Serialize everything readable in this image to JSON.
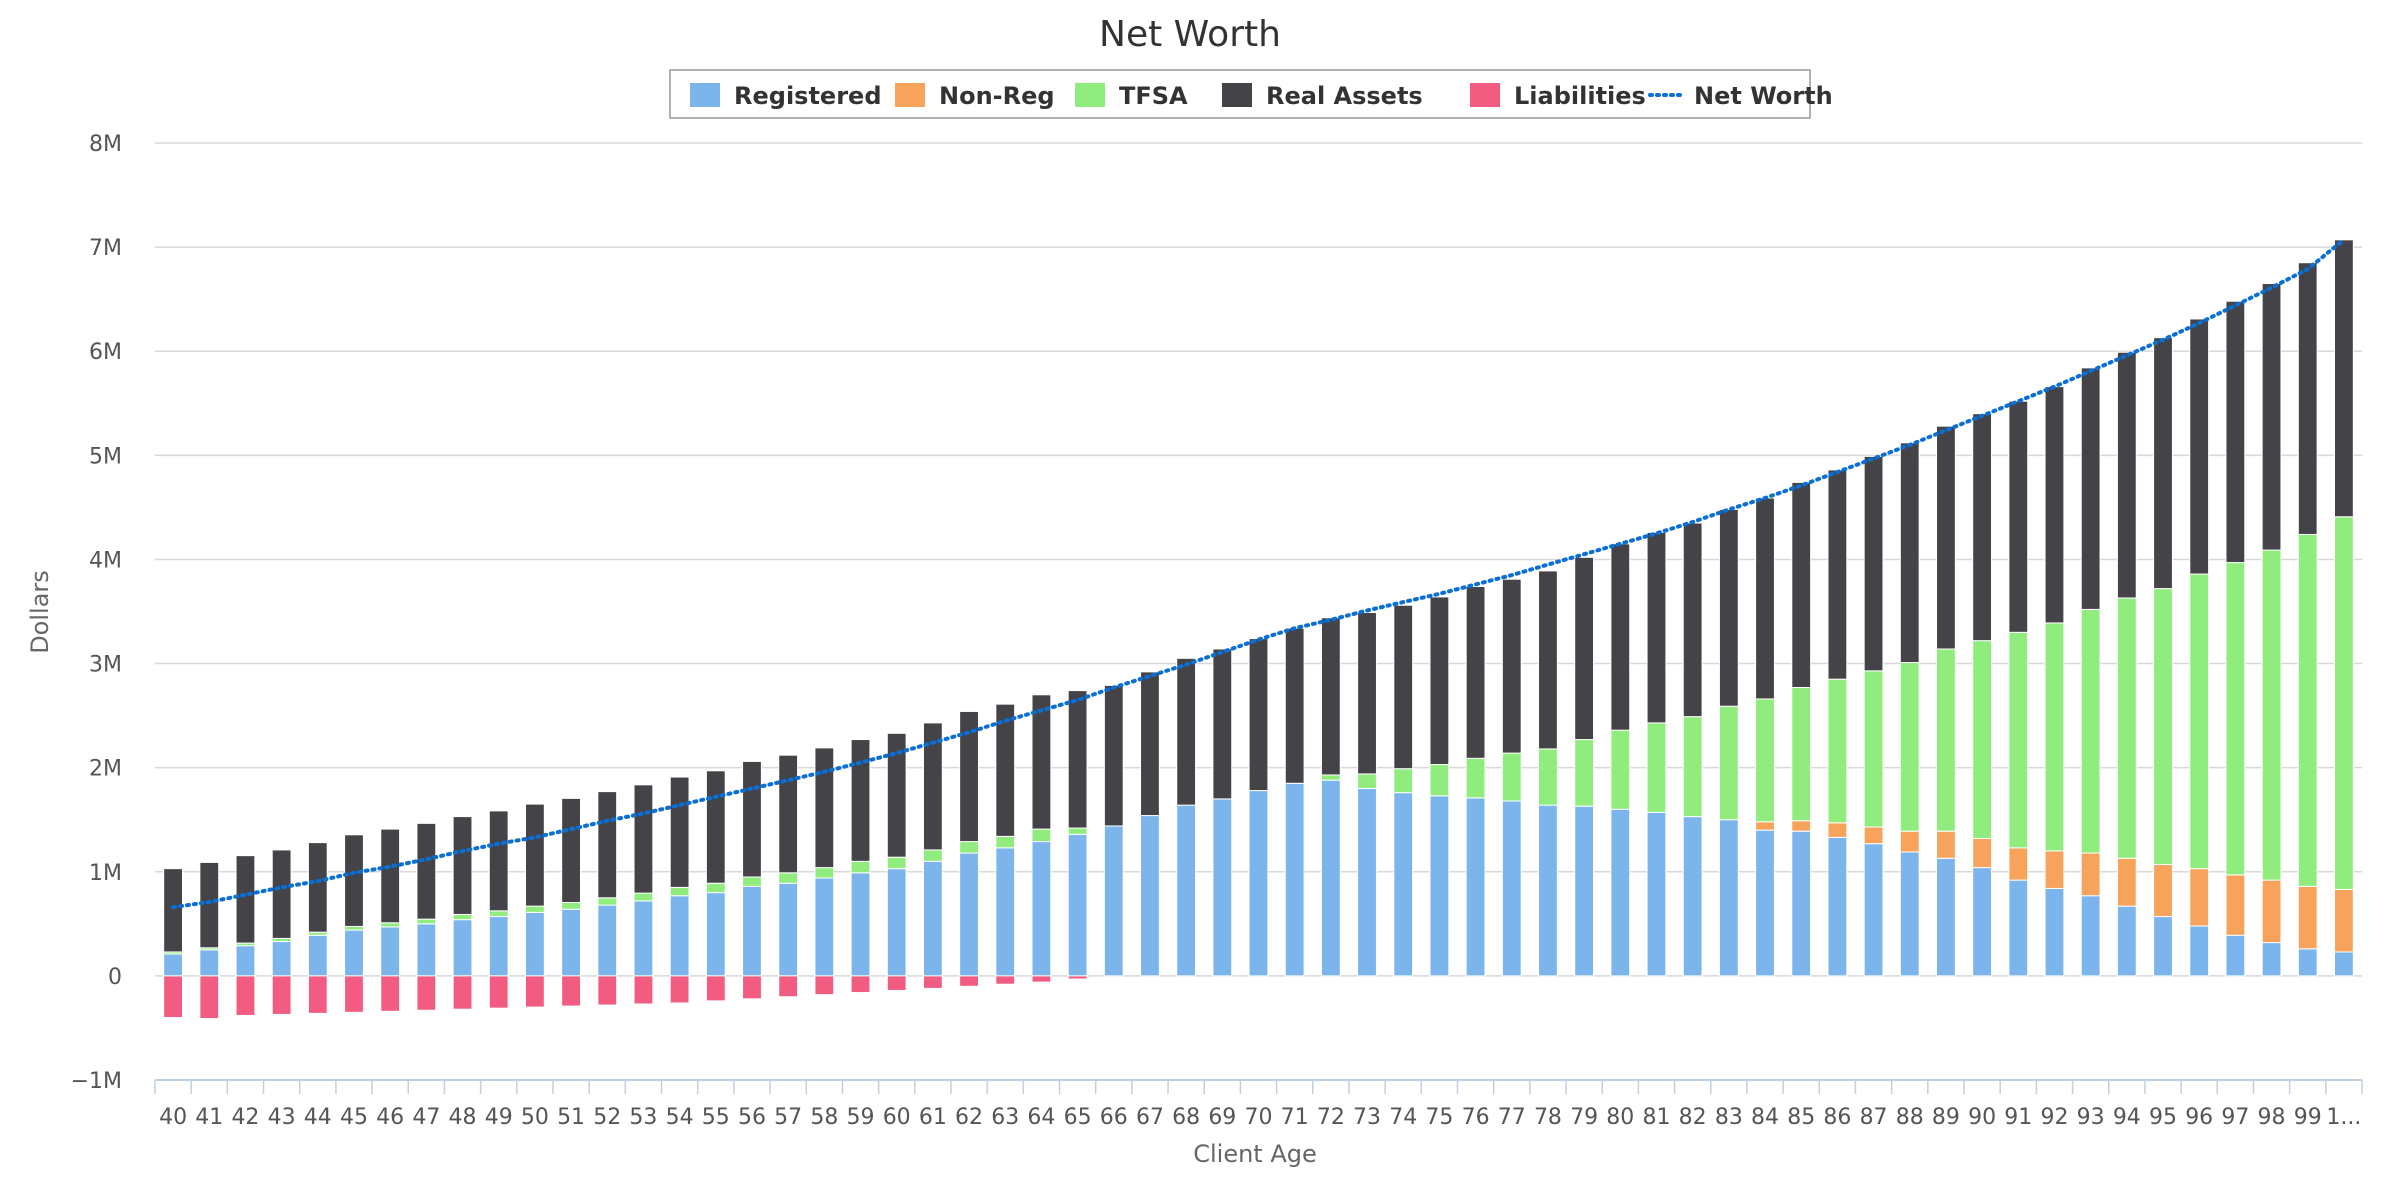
{
  "chart_data": {
    "type": "bar",
    "stacked": true,
    "title": "Net Worth",
    "xlabel": "Client Age",
    "ylabel": "Dollars",
    "ylim": [
      -1000000,
      8000000
    ],
    "yticks": [
      -1000000,
      0,
      1000000,
      2000000,
      3000000,
      4000000,
      5000000,
      6000000,
      7000000,
      8000000
    ],
    "ytick_labels": [
      "−1M",
      "0",
      "1M",
      "2M",
      "3M",
      "4M",
      "5M",
      "6M",
      "7M",
      "8M"
    ],
    "grid": true,
    "legend_position": "top-center",
    "categories": [
      "40",
      "41",
      "42",
      "43",
      "44",
      "45",
      "46",
      "47",
      "48",
      "49",
      "50",
      "51",
      "52",
      "53",
      "54",
      "55",
      "56",
      "57",
      "58",
      "59",
      "60",
      "61",
      "62",
      "63",
      "64",
      "65",
      "66",
      "67",
      "68",
      "69",
      "70",
      "71",
      "72",
      "73",
      "74",
      "75",
      "76",
      "77",
      "78",
      "79",
      "80",
      "81",
      "82",
      "83",
      "84",
      "85",
      "86",
      "87",
      "88",
      "89",
      "90",
      "91",
      "92",
      "93",
      "94",
      "95",
      "96",
      "97",
      "98",
      "99",
      "1..."
    ],
    "series": [
      {
        "name": "Registered",
        "type": "bar",
        "color": "#7cb5ec",
        "values": [
          210000,
          250000,
          290000,
          330000,
          390000,
          440000,
          470000,
          500000,
          540000,
          570000,
          610000,
          640000,
          680000,
          720000,
          770000,
          800000,
          860000,
          890000,
          940000,
          990000,
          1030000,
          1100000,
          1180000,
          1230000,
          1290000,
          1360000,
          1440000,
          1540000,
          1640000,
          1700000,
          1780000,
          1850000,
          1880000,
          1800000,
          1760000,
          1730000,
          1710000,
          1680000,
          1640000,
          1630000,
          1600000,
          1570000,
          1530000,
          1500000,
          1400000,
          1390000,
          1330000,
          1270000,
          1190000,
          1130000,
          1040000,
          920000,
          840000,
          770000,
          670000,
          570000,
          480000,
          390000,
          320000,
          260000,
          230000
        ]
      },
      {
        "name": "Non-Reg",
        "type": "bar",
        "color": "#f7a35c",
        "values": [
          0,
          0,
          0,
          0,
          0,
          0,
          0,
          0,
          0,
          0,
          0,
          0,
          0,
          0,
          0,
          0,
          0,
          0,
          0,
          0,
          0,
          0,
          0,
          0,
          0,
          0,
          0,
          0,
          0,
          0,
          0,
          0,
          0,
          0,
          0,
          0,
          0,
          0,
          0,
          0,
          0,
          0,
          0,
          0,
          80000,
          100000,
          140000,
          160000,
          200000,
          260000,
          280000,
          310000,
          360000,
          410000,
          460000,
          500000,
          550000,
          580000,
          600000,
          600000,
          600000
        ]
      },
      {
        "name": "TFSA",
        "type": "bar",
        "color": "#90ed7d",
        "values": [
          20000,
          20000,
          25000,
          30000,
          30000,
          35000,
          40000,
          45000,
          50000,
          55000,
          60000,
          65000,
          70000,
          75000,
          80000,
          90000,
          90000,
          100000,
          100000,
          110000,
          110000,
          110000,
          110000,
          110000,
          120000,
          60000,
          0,
          0,
          0,
          0,
          0,
          0,
          50000,
          140000,
          230000,
          300000,
          380000,
          460000,
          540000,
          640000,
          760000,
          860000,
          960000,
          1090000,
          1180000,
          1280000,
          1380000,
          1500000,
          1620000,
          1750000,
          1900000,
          2070000,
          2190000,
          2340000,
          2500000,
          2650000,
          2830000,
          3000000,
          3170000,
          3380000,
          3580000
        ]
      },
      {
        "name": "Real Assets",
        "type": "bar",
        "color": "#434348",
        "values": [
          800000,
          820000,
          840000,
          850000,
          860000,
          880000,
          900000,
          920000,
          940000,
          960000,
          980000,
          1000000,
          1020000,
          1040000,
          1060000,
          1080000,
          1110000,
          1130000,
          1150000,
          1170000,
          1190000,
          1220000,
          1250000,
          1270000,
          1290000,
          1320000,
          1350000,
          1380000,
          1410000,
          1440000,
          1460000,
          1490000,
          1510000,
          1550000,
          1570000,
          1610000,
          1650000,
          1670000,
          1710000,
          1750000,
          1790000,
          1830000,
          1860000,
          1890000,
          1930000,
          1970000,
          2010000,
          2060000,
          2110000,
          2140000,
          2180000,
          2220000,
          2270000,
          2320000,
          2360000,
          2410000,
          2450000,
          2510000,
          2560000,
          2610000,
          2660000
        ]
      },
      {
        "name": "Liabilities",
        "type": "bar",
        "color": "#f15c80",
        "values": [
          -400000,
          -410000,
          -380000,
          -370000,
          -360000,
          -350000,
          -340000,
          -330000,
          -320000,
          -310000,
          -300000,
          -290000,
          -280000,
          -270000,
          -260000,
          -240000,
          -220000,
          -200000,
          -180000,
          -160000,
          -140000,
          -120000,
          -100000,
          -80000,
          -60000,
          -30000,
          0,
          0,
          0,
          0,
          0,
          0,
          0,
          0,
          0,
          0,
          0,
          0,
          0,
          0,
          0,
          0,
          0,
          0,
          0,
          0,
          0,
          0,
          0,
          0,
          0,
          0,
          0,
          0,
          0,
          0,
          0,
          0,
          0,
          0,
          0
        ]
      },
      {
        "name": "Net Worth",
        "type": "line",
        "style": "dotted",
        "color": "#0a6fd6",
        "values": [
          660000,
          710000,
          780000,
          850000,
          910000,
          990000,
          1050000,
          1120000,
          1200000,
          1270000,
          1330000,
          1410000,
          1490000,
          1560000,
          1640000,
          1720000,
          1800000,
          1880000,
          1960000,
          2050000,
          2140000,
          2240000,
          2340000,
          2450000,
          2550000,
          2650000,
          2770000,
          2880000,
          2990000,
          3110000,
          3230000,
          3340000,
          3420000,
          3510000,
          3590000,
          3670000,
          3760000,
          3850000,
          3950000,
          4050000,
          4150000,
          4250000,
          4360000,
          4480000,
          4590000,
          4710000,
          4840000,
          4970000,
          5100000,
          5240000,
          5380000,
          5520000,
          5660000,
          5810000,
          5960000,
          6110000,
          6270000,
          6440000,
          6610000,
          6790000,
          7070000
        ]
      }
    ]
  }
}
